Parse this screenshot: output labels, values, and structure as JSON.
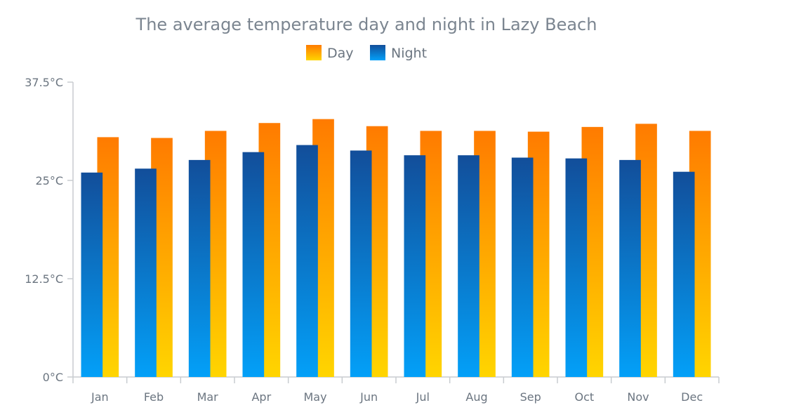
{
  "chart_data": {
    "type": "bar",
    "title": "The average temperature day and night in Lazy Beach",
    "categories": [
      "Jan",
      "Feb",
      "Mar",
      "Apr",
      "May",
      "Jun",
      "Jul",
      "Aug",
      "Sep",
      "Oct",
      "Nov",
      "Dec"
    ],
    "series": [
      {
        "name": "Night",
        "values": [
          26.0,
          26.5,
          27.6,
          28.6,
          29.5,
          28.8,
          28.2,
          28.2,
          27.9,
          27.8,
          27.6,
          26.1
        ]
      },
      {
        "name": "Day",
        "values": [
          30.5,
          30.4,
          31.3,
          32.3,
          32.8,
          31.9,
          31.3,
          31.3,
          31.2,
          31.8,
          32.2,
          31.3
        ]
      }
    ],
    "ylim": [
      0,
      37.5
    ],
    "yticks": [
      "0°C",
      "12.5°C",
      "25°C",
      "37.5°C"
    ],
    "ytick_values": [
      0,
      12.5,
      25,
      37.5
    ],
    "grid": false,
    "legend_position": "top-center",
    "colors": {
      "night_top": "#124e9a",
      "night_bottom": "#03a0f8",
      "day_top": "#ff7b00",
      "day_bottom": "#ffd500",
      "axis": "#c8ccd0"
    }
  }
}
